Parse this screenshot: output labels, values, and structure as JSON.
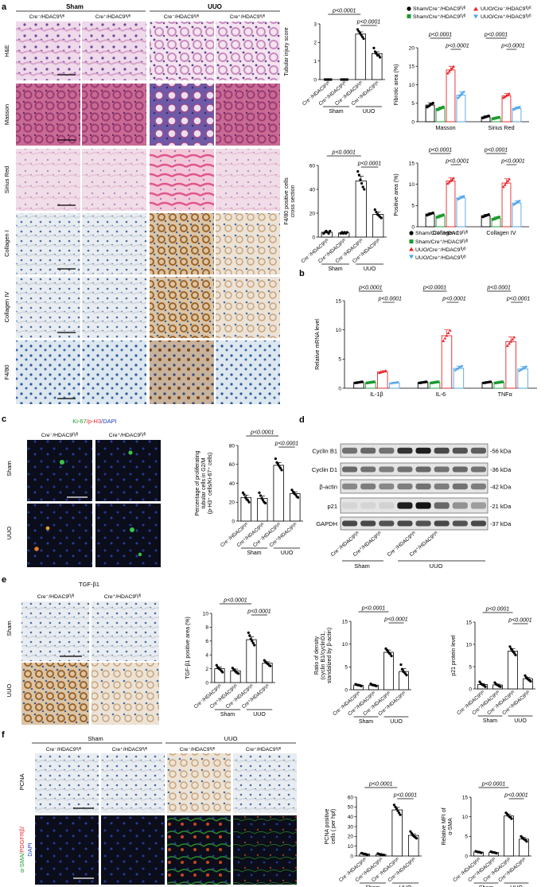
{
  "colors": {
    "black": "#000000",
    "green": "#1a9b2c",
    "red": "#e8262b",
    "blue": "#4ea5e8",
    "he_bg": "#efd9ea",
    "he_tissue": "#c98bbf",
    "masson_bg": "#c96a94",
    "masson_tissue": "#9c3b74",
    "masson_fib": "#5a4f9e",
    "sirius_bg": "#f1dde8",
    "sirius_fib": "#e27aa3",
    "ihc_bg": "#e7ecf0",
    "ihc_nuc": "#4a6c9e",
    "ihc_brown": "#b07a3e",
    "fluor_bg": "#0b0d1a",
    "dapi": "#1f3a9a",
    "ki67": "#39c34a",
    "ph3": "#e03a2c"
  },
  "panel_a": {
    "letter": "a",
    "group_sham": "Sham",
    "group_uuo": "UUO",
    "col_labels": [
      "Cre⁻/HDAC9ᶠˡ/ᶠˡ",
      "Cre⁺/HDAC9ᶠˡ/ᶠˡ",
      "Cre⁻/HDAC9ᶠˡ/ᶠˡ",
      "Cre⁺/HDAC9ᶠˡ/ᶠˡ"
    ],
    "row_labels": [
      "H&E",
      "Masson",
      "Sirius Red",
      "Collagen I",
      "Collagen IV",
      "F4/80"
    ],
    "legend_top": [
      "Sham/Cre⁻/HDAC9ᶠˡ/ᶠˡ",
      "UUO/Cre⁻/HDAC9ᶠˡ/ᶠˡ",
      "Sham/Cre⁺/HDAC9ᶠˡ/ᶠˡ",
      "UUO/Cre⁺/HDAC9ᶠˡ/ᶠˡ"
    ],
    "legend_bottom": [
      "Sham/Cre⁻/HDAC9ᶠˡ/ᶠˡ",
      "Sham/Cre⁺/HDAC9ᶠˡ/ᶠˡ",
      "UUO/Cre⁻/HDAC9ᶠˡ/ᶠˡ",
      "UUO/Cre⁺/HDAC9ᶠˡ/ᶠˡ"
    ]
  },
  "panel_b": {
    "letter": "b"
  },
  "panel_c": {
    "letter": "c",
    "stain_ki67": "Ki-67",
    "stain_ph3": "/p-H3",
    "stain_dapi": "/DAPI",
    "col_labels": [
      "Cre⁻/HDAC9ᶠˡ/ᶠˡ",
      "Cre⁺/HDAC9ᶠˡ/ᶠˡ"
    ],
    "row_labels": [
      "Sham",
      "UUO"
    ]
  },
  "panel_d": {
    "letter": "d",
    "proteins": [
      "Cyclin B1",
      "Cyclin D1",
      "β-actin",
      "p21",
      "GAPDH"
    ],
    "sizes": [
      "56 kDa",
      "36 kDa",
      "42 kDa",
      "21 kDa",
      "37 kDa"
    ],
    "lane_labels": [
      "Cre⁻/HDAC9ᶠˡ/ᶠˡ",
      "Cre⁺/HDAC9ᶠˡ/ᶠˡ",
      "Cre⁻/HDAC9ᶠˡ/ᶠˡ",
      "Cre⁺/HDAC9ᶠˡ/ᶠˡ"
    ],
    "group_sham": "Sham",
    "group_uuo": "UUO"
  },
  "panel_e": {
    "letter": "e",
    "stain": "TGF-β1",
    "col_labels": [
      "Cre⁻/HDAC9ᶠˡ/ᶠˡ",
      "Cre⁺/HDAC9ᶠˡ/ᶠˡ"
    ],
    "row_labels": [
      "Sham",
      "UUO"
    ]
  },
  "panel_f": {
    "letter": "f",
    "group_sham": "Sham",
    "group_uuo": "UUO",
    "col_labels": [
      "Cre⁻/HDAC9ᶠˡ/ᶠˡ",
      "Cre⁺/HDAC9ᶠˡ/ᶠˡ",
      "Cre⁻/HDAC9ᶠˡ/ᶠˡ",
      "Cre⁺/HDAC9ᶠˡ/ᶠˡ"
    ],
    "row_pcna": "PCNA",
    "row_sma": "α-SMA/",
    "row_pdgfrb": "PDGFRβ/",
    "row_dapi": "DAPI"
  },
  "chart_data": [
    {
      "id": "tubular",
      "type": "bar",
      "ylabel": "Tubular injury score",
      "ylim": [
        0,
        3
      ],
      "yticks": [
        0,
        1,
        2,
        3
      ],
      "categories": [
        "Cre⁻/HDAC9ᶠˡ/ᶠˡ",
        "Cre⁺/HDAC9ᶠˡ/ᶠˡ",
        "Cre⁻/HDAC9ᶠˡ/ᶠˡ",
        "Cre⁺/HDAC9ᶠˡ/ᶠˡ"
      ],
      "groups": [
        "Sham",
        "UUO"
      ],
      "values": [
        0,
        0,
        2.45,
        1.4
      ],
      "errors": [
        0,
        0,
        0.12,
        0.1
      ],
      "points": [
        [
          0,
          0,
          0,
          0,
          0,
          0
        ],
        [
          0,
          0,
          0,
          0,
          0,
          0
        ],
        [
          2.7,
          2.6,
          2.5,
          2.4,
          2.3,
          2.2
        ],
        [
          1.7,
          1.5,
          1.4,
          1.3,
          1.3,
          1.2
        ]
      ],
      "sig": [
        {
          "label": "p<0.0001",
          "from": 0,
          "to": 2
        },
        {
          "label": "p<0.0001",
          "from": 2,
          "to": 3
        }
      ]
    },
    {
      "id": "fibrotic",
      "type": "bar",
      "ylabel": "Fibrotic area (%)",
      "ylim": [
        0,
        20
      ],
      "yticks": [
        0,
        5,
        10,
        15,
        20
      ],
      "groups": [
        "Masson",
        "Sirius Red"
      ],
      "series": [
        {
          "name": "Sham/Cre⁻/HDAC9ᶠˡ/ᶠˡ",
          "values": [
            4.5,
            1.3
          ]
        },
        {
          "name": "Sham/Cre⁺/HDAC9ᶠˡ/ᶠˡ",
          "values": [
            3.6,
            1.0
          ]
        },
        {
          "name": "UUO/Cre⁻/HDAC9ᶠˡ/ᶠˡ",
          "values": [
            14,
            7
          ]
        },
        {
          "name": "UUO/Cre⁺/HDAC9ᶠˡ/ᶠˡ",
          "values": [
            7.2,
            3.6
          ]
        }
      ],
      "errors": [
        [
          0.6,
          0.3
        ],
        [
          0.4,
          0.2
        ],
        [
          1.0,
          0.6
        ],
        [
          0.9,
          0.4
        ]
      ],
      "sig": [
        {
          "label": "p<0.0001",
          "group": 0,
          "from": 0,
          "to": 2
        },
        {
          "label": "p<0.0001",
          "group": 0,
          "from": 2,
          "to": 3
        },
        {
          "label": "p<0.0001",
          "group": 1,
          "from": 0,
          "to": 2
        },
        {
          "label": "p<0.0001",
          "group": 1,
          "from": 2,
          "to": 3
        }
      ]
    },
    {
      "id": "f480",
      "type": "bar",
      "ylabel": "F4/80 positive cells",
      "ylabel2": "cross section",
      "ylim": [
        0,
        60
      ],
      "yticks": [
        0,
        20,
        40,
        60
      ],
      "categories": [
        "Cre⁻/HDAC9ᶠˡ/ᶠˡ",
        "Cre⁺/HDAC9ᶠˡ/ᶠˡ",
        "Cre⁻/HDAC9ᶠˡ/ᶠˡ",
        "Cre⁺/HDAC9ᶠˡ/ᶠˡ"
      ],
      "groups": [
        "Sham",
        "UUO"
      ],
      "values": [
        4,
        3.5,
        47,
        19
      ],
      "errors": [
        0.5,
        0.4,
        4,
        2
      ],
      "points": [
        [
          3,
          4,
          5,
          4,
          3,
          5
        ],
        [
          3,
          4,
          3,
          4,
          3,
          4
        ],
        [
          55,
          52,
          48,
          45,
          42,
          40
        ],
        [
          23,
          21,
          19,
          18,
          17,
          16
        ]
      ],
      "sig": [
        {
          "label": "p<0.0001",
          "from": 0,
          "to": 2
        },
        {
          "label": "p<0.0001",
          "from": 2,
          "to": 3
        }
      ]
    },
    {
      "id": "positive",
      "type": "bar",
      "ylabel": "Positive area (%)",
      "ylim": [
        0,
        15
      ],
      "yticks": [
        0,
        5,
        10,
        15
      ],
      "groups": [
        "Collagen I",
        "Collagen IV"
      ],
      "series": [
        {
          "name": "Sham/Cre⁻/HDAC9ᶠˡ/ᶠˡ",
          "values": [
            3,
            2.6
          ]
        },
        {
          "name": "Sham/Cre⁺/HDAC9ᶠˡ/ᶠˡ",
          "values": [
            2.5,
            2
          ]
        },
        {
          "name": "UUO/Cre⁻/HDAC9ᶠˡ/ᶠˡ",
          "values": [
            10.8,
            10.3
          ]
        },
        {
          "name": "UUO/Cre⁺/HDAC9ᶠˡ/ᶠˡ",
          "values": [
            6.8,
            5.6
          ]
        }
      ],
      "errors": [
        [
          0.3,
          0.3
        ],
        [
          0.3,
          0.3
        ],
        [
          0.7,
          1.0
        ],
        [
          0.4,
          0.5
        ]
      ],
      "sig": [
        {
          "label": "p<0.0001",
          "group": 0,
          "from": 0,
          "to": 2
        },
        {
          "label": "p<0.0001",
          "group": 0,
          "from": 2,
          "to": 3
        },
        {
          "label": "p<0.0001",
          "group": 1,
          "from": 0,
          "to": 2
        },
        {
          "label": "p<0.0001",
          "group": 1,
          "from": 2,
          "to": 3
        }
      ]
    },
    {
      "id": "mrna",
      "type": "bar",
      "ylabel": "Relative mRNA level",
      "ylim": [
        0,
        15
      ],
      "yticks": [
        0,
        5,
        10,
        15
      ],
      "groups": [
        "IL-1β",
        "IL-6",
        "TNFα"
      ],
      "series": [
        {
          "name": "Sham/Cre⁻/HDAC9ᶠˡ/ᶠˡ",
          "values": [
            1,
            1,
            1
          ]
        },
        {
          "name": "Sham/Cre⁺/HDAC9ᶠˡ/ᶠˡ",
          "values": [
            1,
            1,
            1
          ]
        },
        {
          "name": "UUO/Cre⁻/HDAC9ᶠˡ/ᶠˡ",
          "values": [
            2.8,
            9,
            8
          ]
        },
        {
          "name": "UUO/Cre⁺/HDAC9ᶠˡ/ᶠˡ",
          "values": [
            0.9,
            3.4,
            3.3
          ]
        }
      ],
      "errors": [
        [
          0.1,
          0.1,
          0.1
        ],
        [
          0.1,
          0.1,
          0.1
        ],
        [
          0.2,
          1.0,
          0.8
        ],
        [
          0.1,
          0.4,
          0.4
        ]
      ],
      "sig": [
        {
          "label": "p<0.0001",
          "group": 0,
          "from": 0,
          "to": 2
        },
        {
          "label": "p<0.0001",
          "group": 0,
          "from": 2,
          "to": 3
        },
        {
          "label": "p<0.0001",
          "group": 1,
          "from": 0,
          "to": 2
        },
        {
          "label": "p<0.0001",
          "group": 1,
          "from": 2,
          "to": 3
        },
        {
          "label": "p<0.0001",
          "group": 2,
          "from": 0,
          "to": 2
        },
        {
          "label": "p<0.0001",
          "group": 2,
          "from": 2,
          "to": 3
        }
      ]
    },
    {
      "id": "prolif",
      "type": "bar",
      "ylabel": "Percentage of proliferating",
      "ylabel2": "tubular cells in G2/M",
      "ylabel3": "(p-H3⁺ cells/Ki-67⁺ cells)",
      "ylim": [
        0,
        80
      ],
      "yticks": [
        0,
        20,
        40,
        60,
        80
      ],
      "categories": [
        "Cre⁻/HDAC9ᶠˡ/ᶠˡ",
        "Cre⁺/HDAC9ᶠˡ/ᶠˡ",
        "Cre⁻/HDAC9ᶠˡ/ᶠˡ",
        "Cre⁺/HDAC9ᶠˡ/ᶠˡ"
      ],
      "groups": [
        "Sham",
        "UUO"
      ],
      "values": [
        25,
        24,
        59,
        29
      ],
      "errors": [
        2.5,
        2.5,
        3,
        2
      ],
      "points": [
        [
          30,
          28,
          25,
          23,
          22,
          20
        ],
        [
          30,
          27,
          24,
          22,
          20,
          19
        ],
        [
          66,
          62,
          60,
          58,
          56,
          54
        ],
        [
          33,
          31,
          29,
          28,
          26,
          25
        ]
      ],
      "sig": [
        {
          "label": "p<0.0001",
          "from": 0,
          "to": 2
        },
        {
          "label": "p<0.0001",
          "from": 2,
          "to": 3
        }
      ]
    },
    {
      "id": "tgf",
      "type": "bar",
      "ylabel": "TGF-β1 positive area (%)",
      "ylim": [
        0,
        10
      ],
      "yticks": [
        0,
        2,
        4,
        6,
        8,
        10
      ],
      "categories": [
        "Cre⁻/HDAC9ᶠˡ/ᶠˡ",
        "Cre⁺/HDAC9ᶠˡ/ᶠˡ",
        "Cre⁻/HDAC9ᶠˡ/ᶠˡ",
        "Cre⁺/HDAC9ᶠˡ/ᶠˡ"
      ],
      "groups": [
        "Sham",
        "UUO"
      ],
      "values": [
        2,
        1.7,
        6.2,
        2.8
      ],
      "errors": [
        0.25,
        0.25,
        0.4,
        0.2
      ],
      "points": [
        [
          2.5,
          2.2,
          2,
          1.9,
          1.7,
          1.5
        ],
        [
          2.1,
          1.9,
          1.7,
          1.5,
          1.4,
          1.3
        ],
        [
          7.2,
          6.8,
          6.3,
          6,
          5.7,
          5.4
        ],
        [
          3.2,
          3,
          2.8,
          2.7,
          2.5,
          2.4
        ]
      ],
      "sig": [
        {
          "label": "p<0.0001",
          "from": 0,
          "to": 2
        },
        {
          "label": "p<0.0001",
          "from": 2,
          "to": 3
        }
      ]
    },
    {
      "id": "ratio",
      "type": "bar",
      "ylabel": "Ratio of density",
      "ylabel2": "(cyclin B1/cyclinD1,",
      "ylabel3": "standalized by β-actin)",
      "ylim": [
        0,
        15
      ],
      "yticks": [
        0,
        5,
        10,
        15
      ],
      "categories": [
        "Cre⁻/HDAC9ᶠˡ/ᶠˡ",
        "Cre⁺/HDAC9ᶠˡ/ᶠˡ",
        "Cre⁻/HDAC9ᶠˡ/ᶠˡ",
        "Cre⁺/HDAC9ᶠˡ/ᶠˡ"
      ],
      "groups": [
        "Sham",
        "UUO"
      ],
      "values": [
        1,
        1,
        8.2,
        4
      ],
      "errors": [
        0.15,
        0.15,
        0.5,
        0.6
      ],
      "points": [
        [
          1.2,
          1.1,
          1,
          1,
          0.9,
          0.8
        ],
        [
          1.3,
          1.1,
          1,
          1,
          0.9,
          0.8
        ],
        [
          9,
          8.7,
          8.3,
          8,
          7.8,
          7.4
        ],
        [
          5.5,
          4.5,
          4,
          3.8,
          3.5,
          3.2
        ]
      ],
      "sig": [
        {
          "label": "p<0.0001",
          "from": 0,
          "to": 2
        },
        {
          "label": "p<0.0001",
          "from": 2,
          "to": 3
        }
      ]
    },
    {
      "id": "p21",
      "type": "bar",
      "ylabel": "p21 protein level",
      "ylim": [
        0,
        15
      ],
      "yticks": [
        0,
        5,
        10,
        15
      ],
      "categories": [
        "Cre⁻/HDAC9ᶠˡ/ᶠˡ",
        "Cre⁺/HDAC9ᶠˡ/ᶠˡ",
        "Cre⁻/HDAC9ᶠˡ/ᶠˡ",
        "Cre⁺/HDAC9ᶠˡ/ᶠˡ"
      ],
      "groups": [
        "Sham",
        "UUO"
      ],
      "values": [
        1,
        0.9,
        8.5,
        2.3
      ],
      "errors": [
        0.2,
        0.2,
        0.5,
        0.3
      ],
      "points": [
        [
          1.6,
          1.2,
          1,
          0.9,
          0.7,
          0.5
        ],
        [
          1.4,
          1.1,
          0.9,
          0.8,
          0.6,
          0.5
        ],
        [
          9.5,
          9,
          8.6,
          8.3,
          8,
          7.6
        ],
        [
          3,
          2.6,
          2.3,
          2.1,
          1.9,
          1.7
        ]
      ],
      "sig": [
        {
          "label": "p<0.0001",
          "from": 0,
          "to": 2
        },
        {
          "label": "p<0.0001",
          "from": 2,
          "to": 3
        }
      ]
    },
    {
      "id": "pcna",
      "type": "bar",
      "ylabel": "PCNA positive",
      "ylabel2": "cells ( per hpf)",
      "ylim": [
        0,
        60
      ],
      "yticks": [
        0,
        10,
        20,
        30,
        40,
        50,
        60
      ],
      "categories": [
        "Cre⁻/HDAC9ᶠˡ/ᶠˡ",
        "Cre⁺/HDAC9ᶠˡ/ᶠˡ",
        "Cre⁻/HDAC9ᶠˡ/ᶠˡ",
        "Cre⁺/HDAC9ᶠˡ/ᶠˡ"
      ],
      "groups": [
        "Sham",
        "UUO"
      ],
      "values": [
        2,
        1.5,
        47,
        21
      ],
      "errors": [
        0.4,
        0.3,
        2.5,
        1.5
      ],
      "points": [
        [
          3,
          2.5,
          2,
          2,
          1.5,
          1
        ],
        [
          2.5,
          2,
          1.5,
          1.5,
          1,
          1
        ],
        [
          52,
          50,
          48,
          46,
          44,
          42
        ],
        [
          25,
          23,
          21,
          20,
          19,
          18
        ]
      ],
      "sig": [
        {
          "label": "p<0.0001",
          "from": 0,
          "to": 2
        },
        {
          "label": "p<0.0001",
          "from": 2,
          "to": 3
        }
      ]
    },
    {
      "id": "mfi",
      "type": "bar",
      "ylabel": "Relative MFI of",
      "ylabel2": "α-SMA",
      "ylim": [
        0,
        15
      ],
      "yticks": [
        0,
        5,
        10,
        15
      ],
      "categories": [
        "Cre⁻/HDAC9ᶠˡ/ᶠˡ",
        "Cre⁺/HDAC9ᶠˡ/ᶠˡ",
        "Cre⁻/HDAC9ᶠˡ/ᶠˡ",
        "Cre⁺/HDAC9ᶠˡ/ᶠˡ"
      ],
      "groups": [
        "Sham",
        "UUO"
      ],
      "values": [
        1,
        0.9,
        10.2,
        4.3
      ],
      "errors": [
        0.1,
        0.1,
        0.4,
        0.4
      ],
      "points": [
        [
          1.2,
          1.1,
          1,
          1,
          0.9,
          0.8
        ],
        [
          1.1,
          1,
          0.9,
          0.9,
          0.8,
          0.7
        ],
        [
          11,
          10.7,
          10.3,
          10,
          9.8,
          9.5
        ],
        [
          5,
          4.7,
          4.4,
          4.2,
          4,
          3.7
        ]
      ],
      "sig": [
        {
          "label": "p<0.0001",
          "from": 0,
          "to": 2
        },
        {
          "label": "p<0.0001",
          "from": 2,
          "to": 3
        }
      ]
    }
  ]
}
